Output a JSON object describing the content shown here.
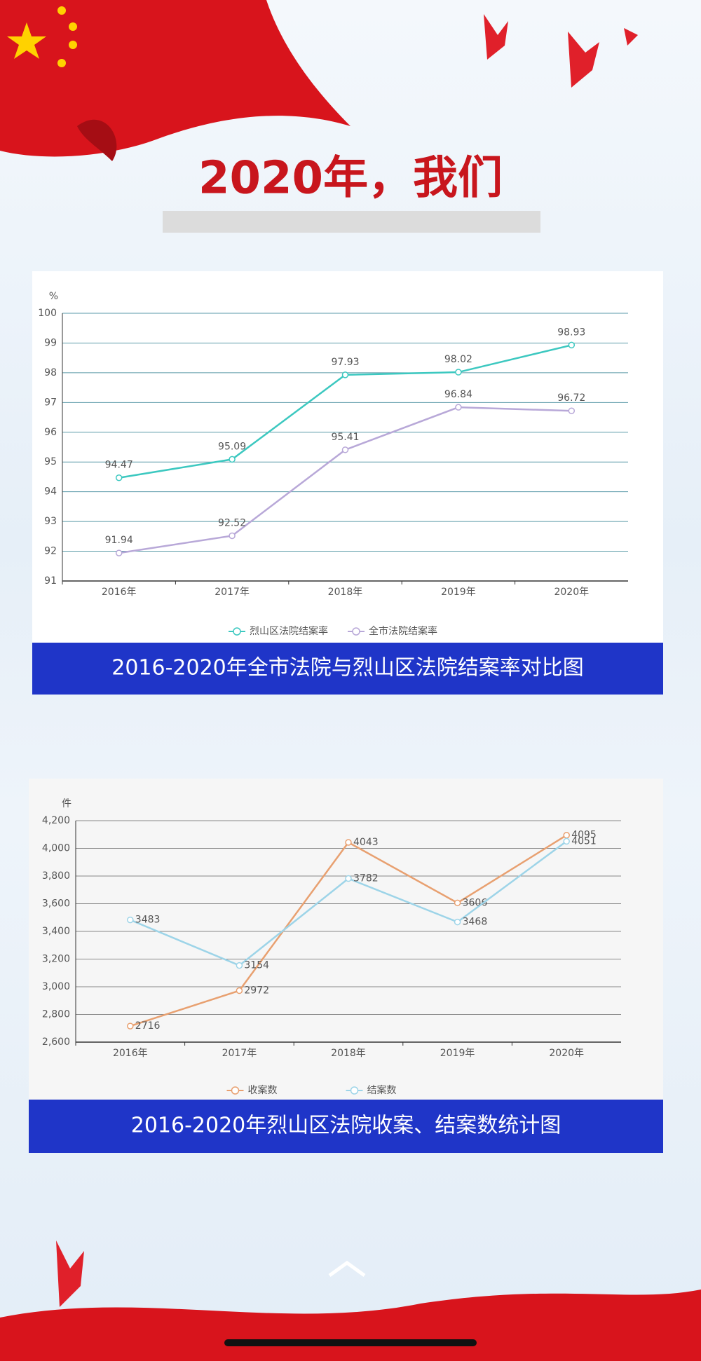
{
  "heading": "2020年，我们",
  "chart_data": [
    {
      "type": "line",
      "title": "2016-2020年全市法院与烈山区法院结案率对比图",
      "y_unit": "%",
      "categories": [
        "2016年",
        "2017年",
        "2018年",
        "2019年",
        "2020年"
      ],
      "series": [
        {
          "name": "烈山区法院结案率",
          "color": "#3cc8c0",
          "values": [
            94.47,
            95.09,
            97.93,
            98.02,
            98.93
          ]
        },
        {
          "name": "全市法院结案率",
          "color": "#b8a8d8",
          "values": [
            91.94,
            92.52,
            95.41,
            96.84,
            96.72
          ]
        }
      ],
      "ylim": [
        91,
        100
      ],
      "yticks": [
        91,
        92,
        93,
        94,
        95,
        96,
        97,
        98,
        99,
        100
      ],
      "grid": true,
      "legend": "bottom"
    },
    {
      "type": "line",
      "title": "2016-2020年烈山区法院收案、结案数统计图",
      "y_unit": "件",
      "categories": [
        "2016年",
        "2017年",
        "2018年",
        "2019年",
        "2020年"
      ],
      "series": [
        {
          "name": "收案数",
          "color": "#e8a070",
          "values": [
            2716,
            2972,
            4043,
            3606,
            4095
          ]
        },
        {
          "name": "结案数",
          "color": "#9dd4e8",
          "values": [
            3483,
            3154,
            3782,
            3468,
            4051
          ]
        }
      ],
      "ylim": [
        2600,
        4200
      ],
      "yticks": [
        {
          "value": 2600,
          "label": "2,600"
        },
        {
          "value": 2800,
          "label": "2,800"
        },
        {
          "value": 3000,
          "label": "3,000"
        },
        {
          "value": 3200,
          "label": "3,200"
        },
        {
          "value": 3400,
          "label": "3,400"
        },
        {
          "value": 3600,
          "label": "3,600"
        },
        {
          "value": 3800,
          "label": "3,800"
        },
        {
          "value": 4000,
          "label": "4,000"
        },
        {
          "value": 4200,
          "label": "4,200"
        }
      ],
      "grid": true,
      "legend": "bottom"
    }
  ]
}
